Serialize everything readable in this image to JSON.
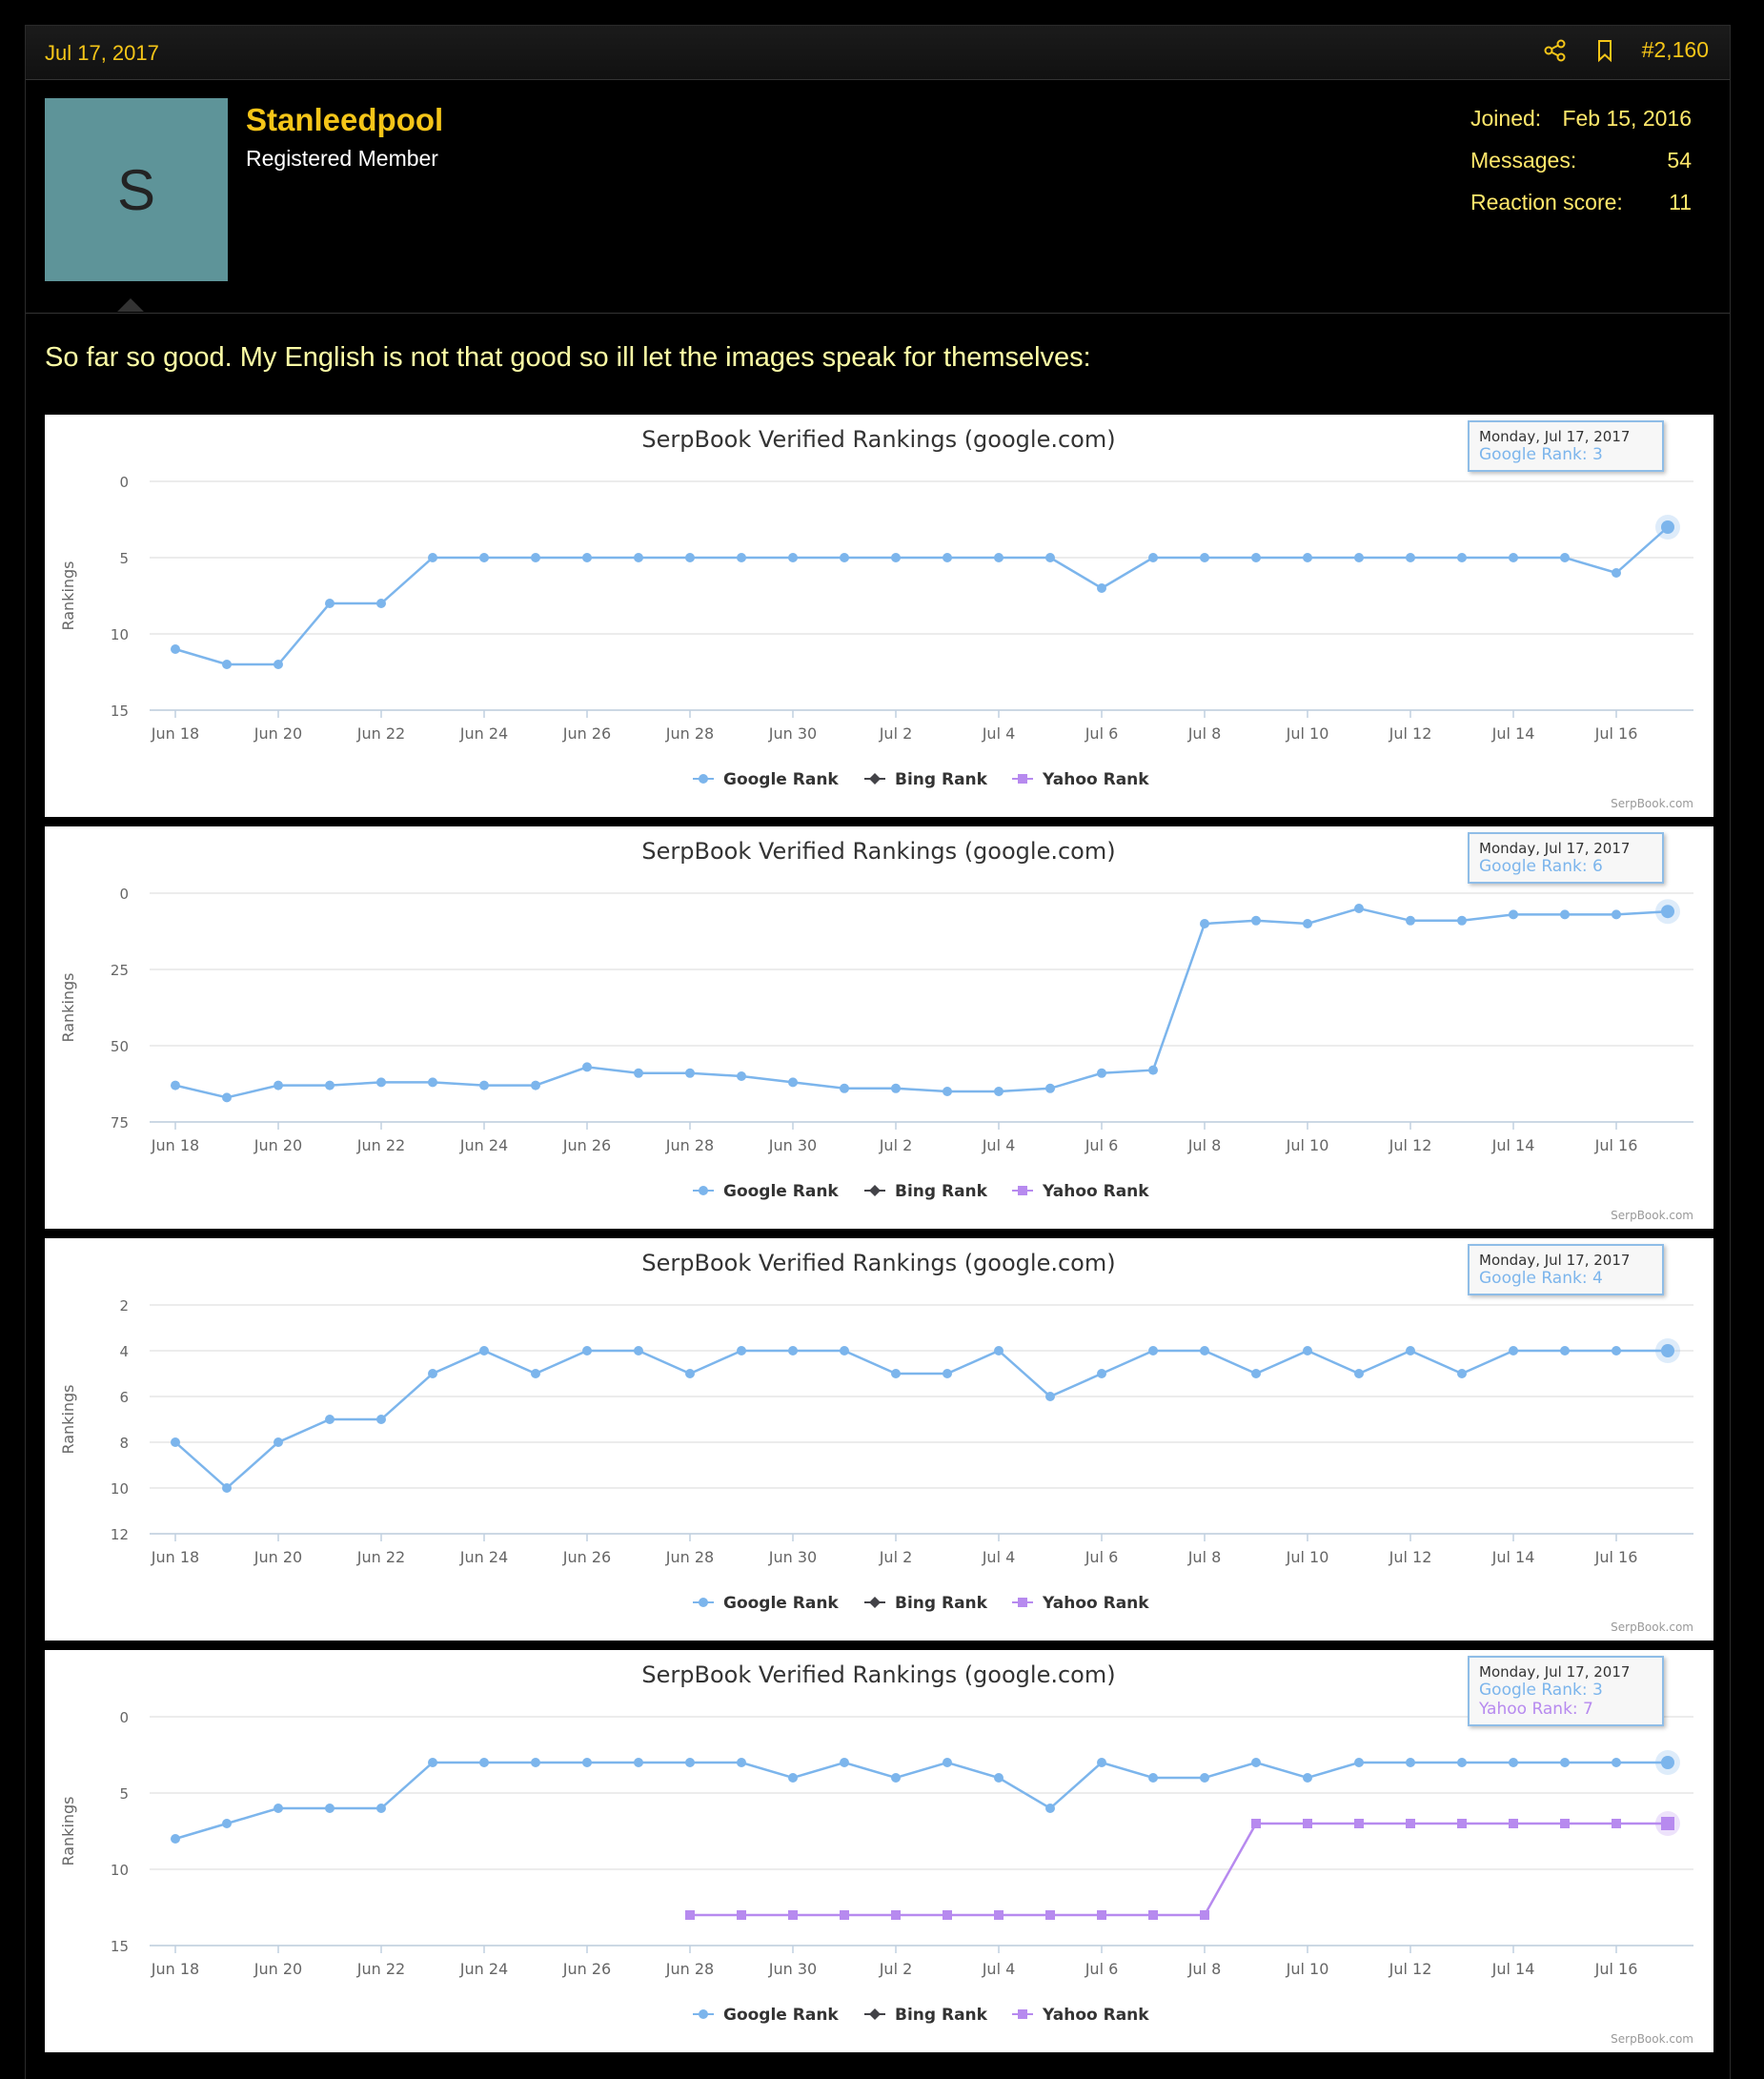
{
  "post": {
    "date": "Jul 17, 2017",
    "post_number": "#2,160",
    "share_icon": "share-icon",
    "bookmark_icon": "bookmark-icon"
  },
  "user": {
    "avatar_letter": "S",
    "avatar_color": "#5e9499",
    "name": "Stanleedpool",
    "title": "Registered Member",
    "stats": [
      {
        "label": "Joined:",
        "value": "Feb 15, 2016"
      },
      {
        "label": "Messages:",
        "value": "54"
      },
      {
        "label": "Reaction score:",
        "value": "11"
      }
    ]
  },
  "message": "So far so good. My English is not that good so ill let the images speak for themselves:",
  "colors": {
    "accent": "#f5c518",
    "google": "#7cb5ec",
    "bing": "#434348",
    "yahoo": "#b78aef"
  },
  "chart_data": [
    {
      "type": "line",
      "title": "SerpBook Verified Rankings (google.com)",
      "ylabel": "Rankings",
      "credit": "SerpBook.com",
      "x": [
        "Jun 18",
        "Jun 19",
        "Jun 20",
        "Jun 21",
        "Jun 22",
        "Jun 23",
        "Jun 24",
        "Jun 25",
        "Jun 26",
        "Jun 27",
        "Jun 28",
        "Jun 29",
        "Jun 30",
        "Jul 1",
        "Jul 2",
        "Jul 3",
        "Jul 4",
        "Jul 5",
        "Jul 6",
        "Jul 7",
        "Jul 8",
        "Jul 9",
        "Jul 10",
        "Jul 11",
        "Jul 12",
        "Jul 13",
        "Jul 14",
        "Jul 15",
        "Jul 16",
        "Jul 17"
      ],
      "x_ticks": [
        "Jun 18",
        "Jun 20",
        "Jun 22",
        "Jun 24",
        "Jun 26",
        "Jun 28",
        "Jun 30",
        "Jul 2",
        "Jul 4",
        "Jul 6",
        "Jul 8",
        "Jul 10",
        "Jul 12",
        "Jul 14",
        "Jul 16"
      ],
      "y_ticks": [
        0,
        5,
        10,
        15
      ],
      "ylim": [
        0,
        15
      ],
      "y_reversed": true,
      "legend": [
        "Google Rank",
        "Bing Rank",
        "Yahoo Rank"
      ],
      "legend_position": "bottom-center",
      "series": [
        {
          "name": "Google Rank",
          "marker": "circle",
          "values": [
            11,
            12,
            12,
            8,
            8,
            5,
            5,
            5,
            5,
            5,
            5,
            5,
            5,
            5,
            5,
            5,
            5,
            5,
            7,
            5,
            5,
            5,
            5,
            5,
            5,
            5,
            5,
            5,
            6,
            3
          ]
        }
      ],
      "tooltip": {
        "date": "Monday, Jul 17, 2017",
        "lines": [
          {
            "text": "Google Rank: 3",
            "series": "google"
          }
        ]
      }
    },
    {
      "type": "line",
      "title": "SerpBook Verified Rankings (google.com)",
      "ylabel": "Rankings",
      "credit": "SerpBook.com",
      "x": [
        "Jun 18",
        "Jun 19",
        "Jun 20",
        "Jun 21",
        "Jun 22",
        "Jun 23",
        "Jun 24",
        "Jun 25",
        "Jun 26",
        "Jun 27",
        "Jun 28",
        "Jun 29",
        "Jun 30",
        "Jul 1",
        "Jul 2",
        "Jul 3",
        "Jul 4",
        "Jul 5",
        "Jul 6",
        "Jul 7",
        "Jul 8",
        "Jul 9",
        "Jul 10",
        "Jul 11",
        "Jul 12",
        "Jul 13",
        "Jul 14",
        "Jul 15",
        "Jul 16",
        "Jul 17"
      ],
      "x_ticks": [
        "Jun 18",
        "Jun 20",
        "Jun 22",
        "Jun 24",
        "Jun 26",
        "Jun 28",
        "Jun 30",
        "Jul 2",
        "Jul 4",
        "Jul 6",
        "Jul 8",
        "Jul 10",
        "Jul 12",
        "Jul 14",
        "Jul 16"
      ],
      "y_ticks": [
        0,
        25,
        50,
        75
      ],
      "ylim": [
        0,
        75
      ],
      "y_reversed": true,
      "legend": [
        "Google Rank",
        "Bing Rank",
        "Yahoo Rank"
      ],
      "legend_position": "bottom-center",
      "series": [
        {
          "name": "Google Rank",
          "marker": "circle",
          "values": [
            63,
            67,
            63,
            63,
            62,
            62,
            63,
            63,
            57,
            59,
            59,
            60,
            62,
            64,
            64,
            65,
            65,
            64,
            59,
            58,
            10,
            9,
            10,
            5,
            9,
            9,
            7,
            7,
            7,
            6
          ]
        }
      ],
      "tooltip": {
        "date": "Monday, Jul 17, 2017",
        "lines": [
          {
            "text": "Google Rank: 6",
            "series": "google"
          }
        ]
      }
    },
    {
      "type": "line",
      "title": "SerpBook Verified Rankings (google.com)",
      "ylabel": "Rankings",
      "credit": "SerpBook.com",
      "x": [
        "Jun 18",
        "Jun 19",
        "Jun 20",
        "Jun 21",
        "Jun 22",
        "Jun 23",
        "Jun 24",
        "Jun 25",
        "Jun 26",
        "Jun 27",
        "Jun 28",
        "Jun 29",
        "Jun 30",
        "Jul 1",
        "Jul 2",
        "Jul 3",
        "Jul 4",
        "Jul 5",
        "Jul 6",
        "Jul 7",
        "Jul 8",
        "Jul 9",
        "Jul 10",
        "Jul 11",
        "Jul 12",
        "Jul 13",
        "Jul 14",
        "Jul 15",
        "Jul 16",
        "Jul 17"
      ],
      "x_ticks": [
        "Jun 18",
        "Jun 20",
        "Jun 22",
        "Jun 24",
        "Jun 26",
        "Jun 28",
        "Jun 30",
        "Jul 2",
        "Jul 4",
        "Jul 6",
        "Jul 8",
        "Jul 10",
        "Jul 12",
        "Jul 14",
        "Jul 16"
      ],
      "y_ticks": [
        2,
        4,
        6,
        8,
        10,
        12
      ],
      "ylim": [
        2,
        12
      ],
      "y_reversed": true,
      "legend": [
        "Google Rank",
        "Bing Rank",
        "Yahoo Rank"
      ],
      "legend_position": "bottom-center",
      "series": [
        {
          "name": "Google Rank",
          "marker": "circle",
          "values": [
            8,
            10,
            8,
            7,
            7,
            5,
            4,
            5,
            4,
            4,
            5,
            4,
            4,
            4,
            5,
            5,
            4,
            6,
            5,
            4,
            4,
            5,
            4,
            5,
            4,
            5,
            4,
            4,
            4,
            4
          ]
        }
      ],
      "tooltip": {
        "date": "Monday, Jul 17, 2017",
        "lines": [
          {
            "text": "Google Rank: 4",
            "series": "google"
          }
        ]
      }
    },
    {
      "type": "line",
      "title": "SerpBook Verified Rankings (google.com)",
      "ylabel": "Rankings",
      "credit": "SerpBook.com",
      "x": [
        "Jun 18",
        "Jun 19",
        "Jun 20",
        "Jun 21",
        "Jun 22",
        "Jun 23",
        "Jun 24",
        "Jun 25",
        "Jun 26",
        "Jun 27",
        "Jun 28",
        "Jun 29",
        "Jun 30",
        "Jul 1",
        "Jul 2",
        "Jul 3",
        "Jul 4",
        "Jul 5",
        "Jul 6",
        "Jul 7",
        "Jul 8",
        "Jul 9",
        "Jul 10",
        "Jul 11",
        "Jul 12",
        "Jul 13",
        "Jul 14",
        "Jul 15",
        "Jul 16",
        "Jul 17"
      ],
      "x_ticks": [
        "Jun 18",
        "Jun 20",
        "Jun 22",
        "Jun 24",
        "Jun 26",
        "Jun 28",
        "Jun 30",
        "Jul 2",
        "Jul 4",
        "Jul 6",
        "Jul 8",
        "Jul 10",
        "Jul 12",
        "Jul 14",
        "Jul 16"
      ],
      "y_ticks": [
        0,
        5,
        10,
        15
      ],
      "ylim": [
        0,
        15
      ],
      "y_reversed": true,
      "legend": [
        "Google Rank",
        "Bing Rank",
        "Yahoo Rank"
      ],
      "legend_position": "bottom-center",
      "series": [
        {
          "name": "Google Rank",
          "marker": "circle",
          "values": [
            8,
            7,
            6,
            6,
            6,
            3,
            3,
            3,
            3,
            3,
            3,
            3,
            4,
            3,
            4,
            3,
            4,
            6,
            3,
            4,
            4,
            3,
            4,
            3,
            3,
            3,
            3,
            3,
            3,
            3
          ]
        },
        {
          "name": "Yahoo Rank",
          "marker": "square",
          "values": [
            null,
            null,
            null,
            null,
            null,
            null,
            null,
            null,
            null,
            null,
            13,
            13,
            13,
            13,
            13,
            13,
            13,
            13,
            13,
            13,
            13,
            7,
            7,
            7,
            7,
            7,
            7,
            7,
            7,
            7
          ]
        }
      ],
      "tooltip": {
        "date": "Monday, Jul 17, 2017",
        "lines": [
          {
            "text": "Google Rank: 3",
            "series": "google"
          },
          {
            "text": "Yahoo Rank: 7",
            "series": "yahoo"
          }
        ]
      }
    }
  ]
}
